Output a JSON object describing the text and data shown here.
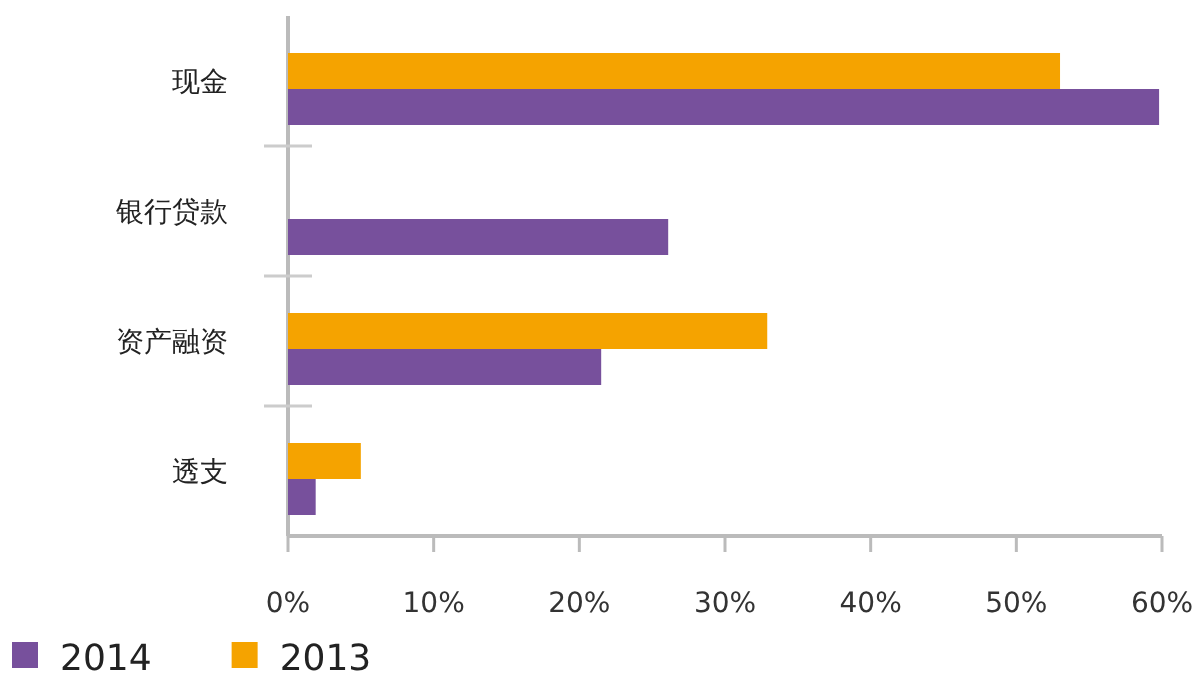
{
  "chart_data": {
    "type": "bar",
    "orientation": "horizontal",
    "categories": [
      "现金",
      "银行贷款",
      "资产融资",
      "透支"
    ],
    "series": [
      {
        "name": "2014",
        "color": "#77509c",
        "values": [
          59.8,
          26.1,
          21.5,
          1.9
        ]
      },
      {
        "name": "2013",
        "color": "#f5a300",
        "values": [
          53,
          null,
          32.9,
          5
        ]
      }
    ],
    "xlim": [
      0,
      60
    ],
    "xticks": [
      {
        "value": 0,
        "label": "0%"
      },
      {
        "value": 10,
        "label": "10%"
      },
      {
        "value": 20,
        "label": "20%"
      },
      {
        "value": 30,
        "label": "30%"
      },
      {
        "value": 40,
        "label": "40%"
      },
      {
        "value": 50,
        "label": "50%"
      },
      {
        "value": 60,
        "label": "60%"
      }
    ],
    "legend": "bottom left"
  }
}
